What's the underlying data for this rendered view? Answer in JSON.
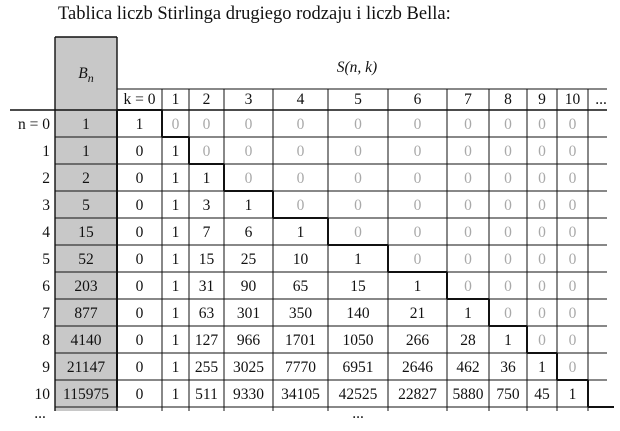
{
  "title": "Tablica liczb Stirlinga drugiego rodzaju i liczb Bella:",
  "header": {
    "bell_label": "B",
    "bell_sub": "n",
    "stirling_label": "S(n, k)",
    "k_cells": [
      "k = 0",
      "1",
      "2",
      "3",
      "4",
      "5",
      "6",
      "7",
      "8",
      "9",
      "10",
      "..."
    ]
  },
  "rows": [
    {
      "n": "n = 0",
      "bell": "1",
      "s": [
        "1",
        "0",
        "0",
        "0",
        "0",
        "0",
        "0",
        "0",
        "0",
        "0",
        "0"
      ]
    },
    {
      "n": "1",
      "bell": "1",
      "s": [
        "0",
        "1",
        "0",
        "0",
        "0",
        "0",
        "0",
        "0",
        "0",
        "0",
        "0"
      ]
    },
    {
      "n": "2",
      "bell": "2",
      "s": [
        "0",
        "1",
        "1",
        "0",
        "0",
        "0",
        "0",
        "0",
        "0",
        "0",
        "0"
      ]
    },
    {
      "n": "3",
      "bell": "5",
      "s": [
        "0",
        "1",
        "3",
        "1",
        "0",
        "0",
        "0",
        "0",
        "0",
        "0",
        "0"
      ]
    },
    {
      "n": "4",
      "bell": "15",
      "s": [
        "0",
        "1",
        "7",
        "6",
        "1",
        "0",
        "0",
        "0",
        "0",
        "0",
        "0"
      ]
    },
    {
      "n": "5",
      "bell": "52",
      "s": [
        "0",
        "1",
        "15",
        "25",
        "10",
        "1",
        "0",
        "0",
        "0",
        "0",
        "0"
      ]
    },
    {
      "n": "6",
      "bell": "203",
      "s": [
        "0",
        "1",
        "31",
        "90",
        "65",
        "15",
        "1",
        "0",
        "0",
        "0",
        "0"
      ]
    },
    {
      "n": "7",
      "bell": "877",
      "s": [
        "0",
        "1",
        "63",
        "301",
        "350",
        "140",
        "21",
        "1",
        "0",
        "0",
        "0"
      ]
    },
    {
      "n": "8",
      "bell": "4140",
      "s": [
        "0",
        "1",
        "127",
        "966",
        "1701",
        "1050",
        "266",
        "28",
        "1",
        "0",
        "0"
      ]
    },
    {
      "n": "9",
      "bell": "21147",
      "s": [
        "0",
        "1",
        "255",
        "3025",
        "7770",
        "6951",
        "2646",
        "462",
        "36",
        "1",
        "0"
      ]
    },
    {
      "n": "10",
      "bell": "115975",
      "s": [
        "0",
        "1",
        "511",
        "9330",
        "34105",
        "42525",
        "22827",
        "5880",
        "750",
        "45",
        "1"
      ]
    }
  ],
  "ellipsis_n": "...",
  "ellipsis_s": "...",
  "colors": {
    "bell_column": "#c8c8c8",
    "zero_text": "#a9a9a9",
    "grid": "#111111"
  }
}
